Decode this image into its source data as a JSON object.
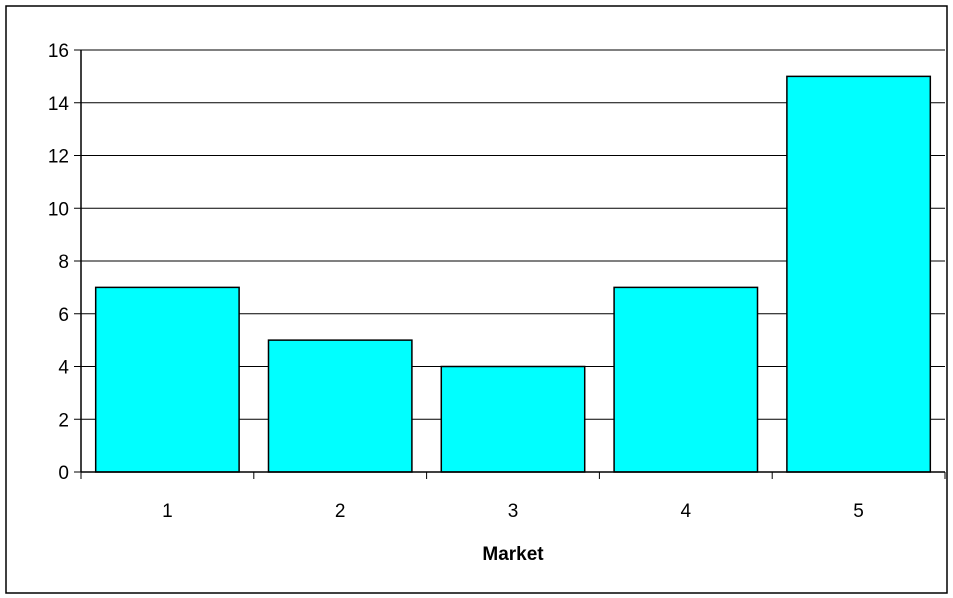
{
  "chart_data": {
    "type": "bar",
    "categories": [
      "1",
      "2",
      "3",
      "4",
      "5"
    ],
    "values": [
      7,
      5,
      4,
      7,
      15
    ],
    "title": "",
    "xlabel": "Market",
    "ylabel": "",
    "ylim": [
      0,
      16
    ],
    "yticks": [
      "0",
      "2",
      "4",
      "6",
      "8",
      "10",
      "12",
      "14",
      "16"
    ],
    "grid": true,
    "legend": "none",
    "bar_color": "#00FFFF",
    "bar_edge_color": "#000000",
    "grid_color": "#000000"
  }
}
